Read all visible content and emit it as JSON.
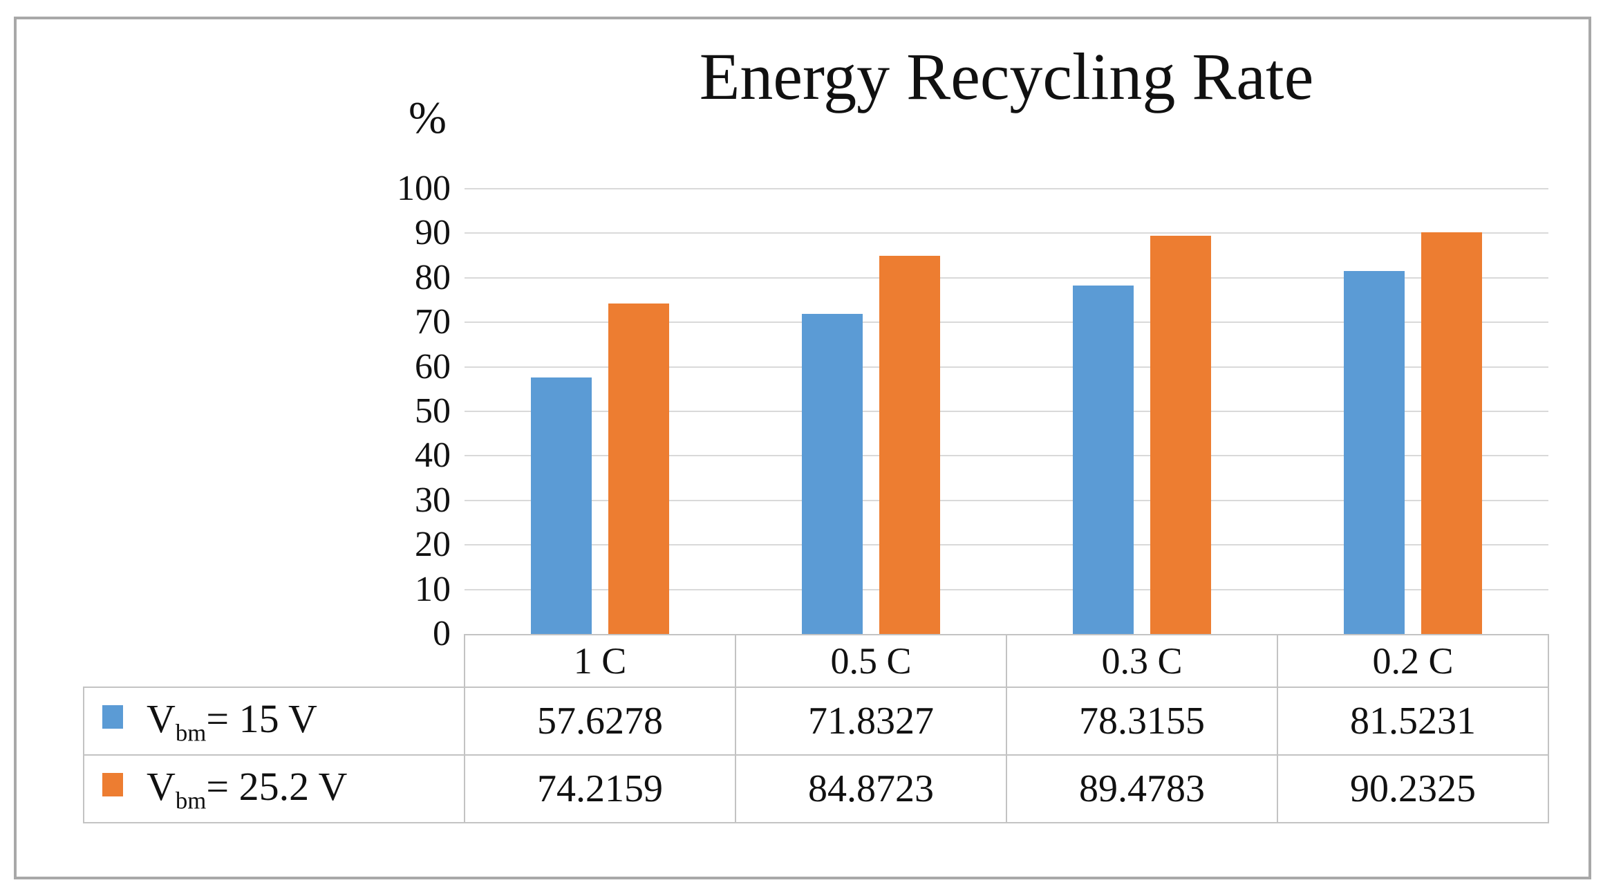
{
  "figure": {
    "title": "Energy Recycling Rate",
    "percent_label": "%"
  },
  "chart_data": {
    "type": "bar",
    "title": "Energy Recycling Rate",
    "xlabel": "",
    "ylabel": "%",
    "ylim": [
      0,
      100
    ],
    "yticks": [
      0,
      10,
      20,
      30,
      40,
      50,
      60,
      70,
      80,
      90,
      100
    ],
    "grid": true,
    "legend_position": "data-table-left",
    "data_table_shown": true,
    "categories": [
      "1 C",
      "0.5 C",
      "0.3 C",
      "0.2 C"
    ],
    "series": [
      {
        "name": "Vbm= 15 V",
        "legend_base": "V",
        "legend_sub": "bm",
        "legend_rest": "= 15 V",
        "color": "#5B9BD5",
        "values": [
          57.6278,
          71.8327,
          78.3155,
          81.5231
        ]
      },
      {
        "name": "Vbm= 25.2 V",
        "legend_base": "V",
        "legend_sub": "bm",
        "legend_rest": "= 25.2 V",
        "color": "#ED7D31",
        "values": [
          74.2159,
          84.8723,
          89.4783,
          90.2325
        ]
      }
    ],
    "colors": {
      "bar_series1": "#5B9BD5",
      "bar_series2": "#ED7D31",
      "gridline": "#D9D9D9",
      "table_border": "#C3C3C3",
      "frame_border": "#A8A8A8",
      "text": "#111111"
    }
  }
}
